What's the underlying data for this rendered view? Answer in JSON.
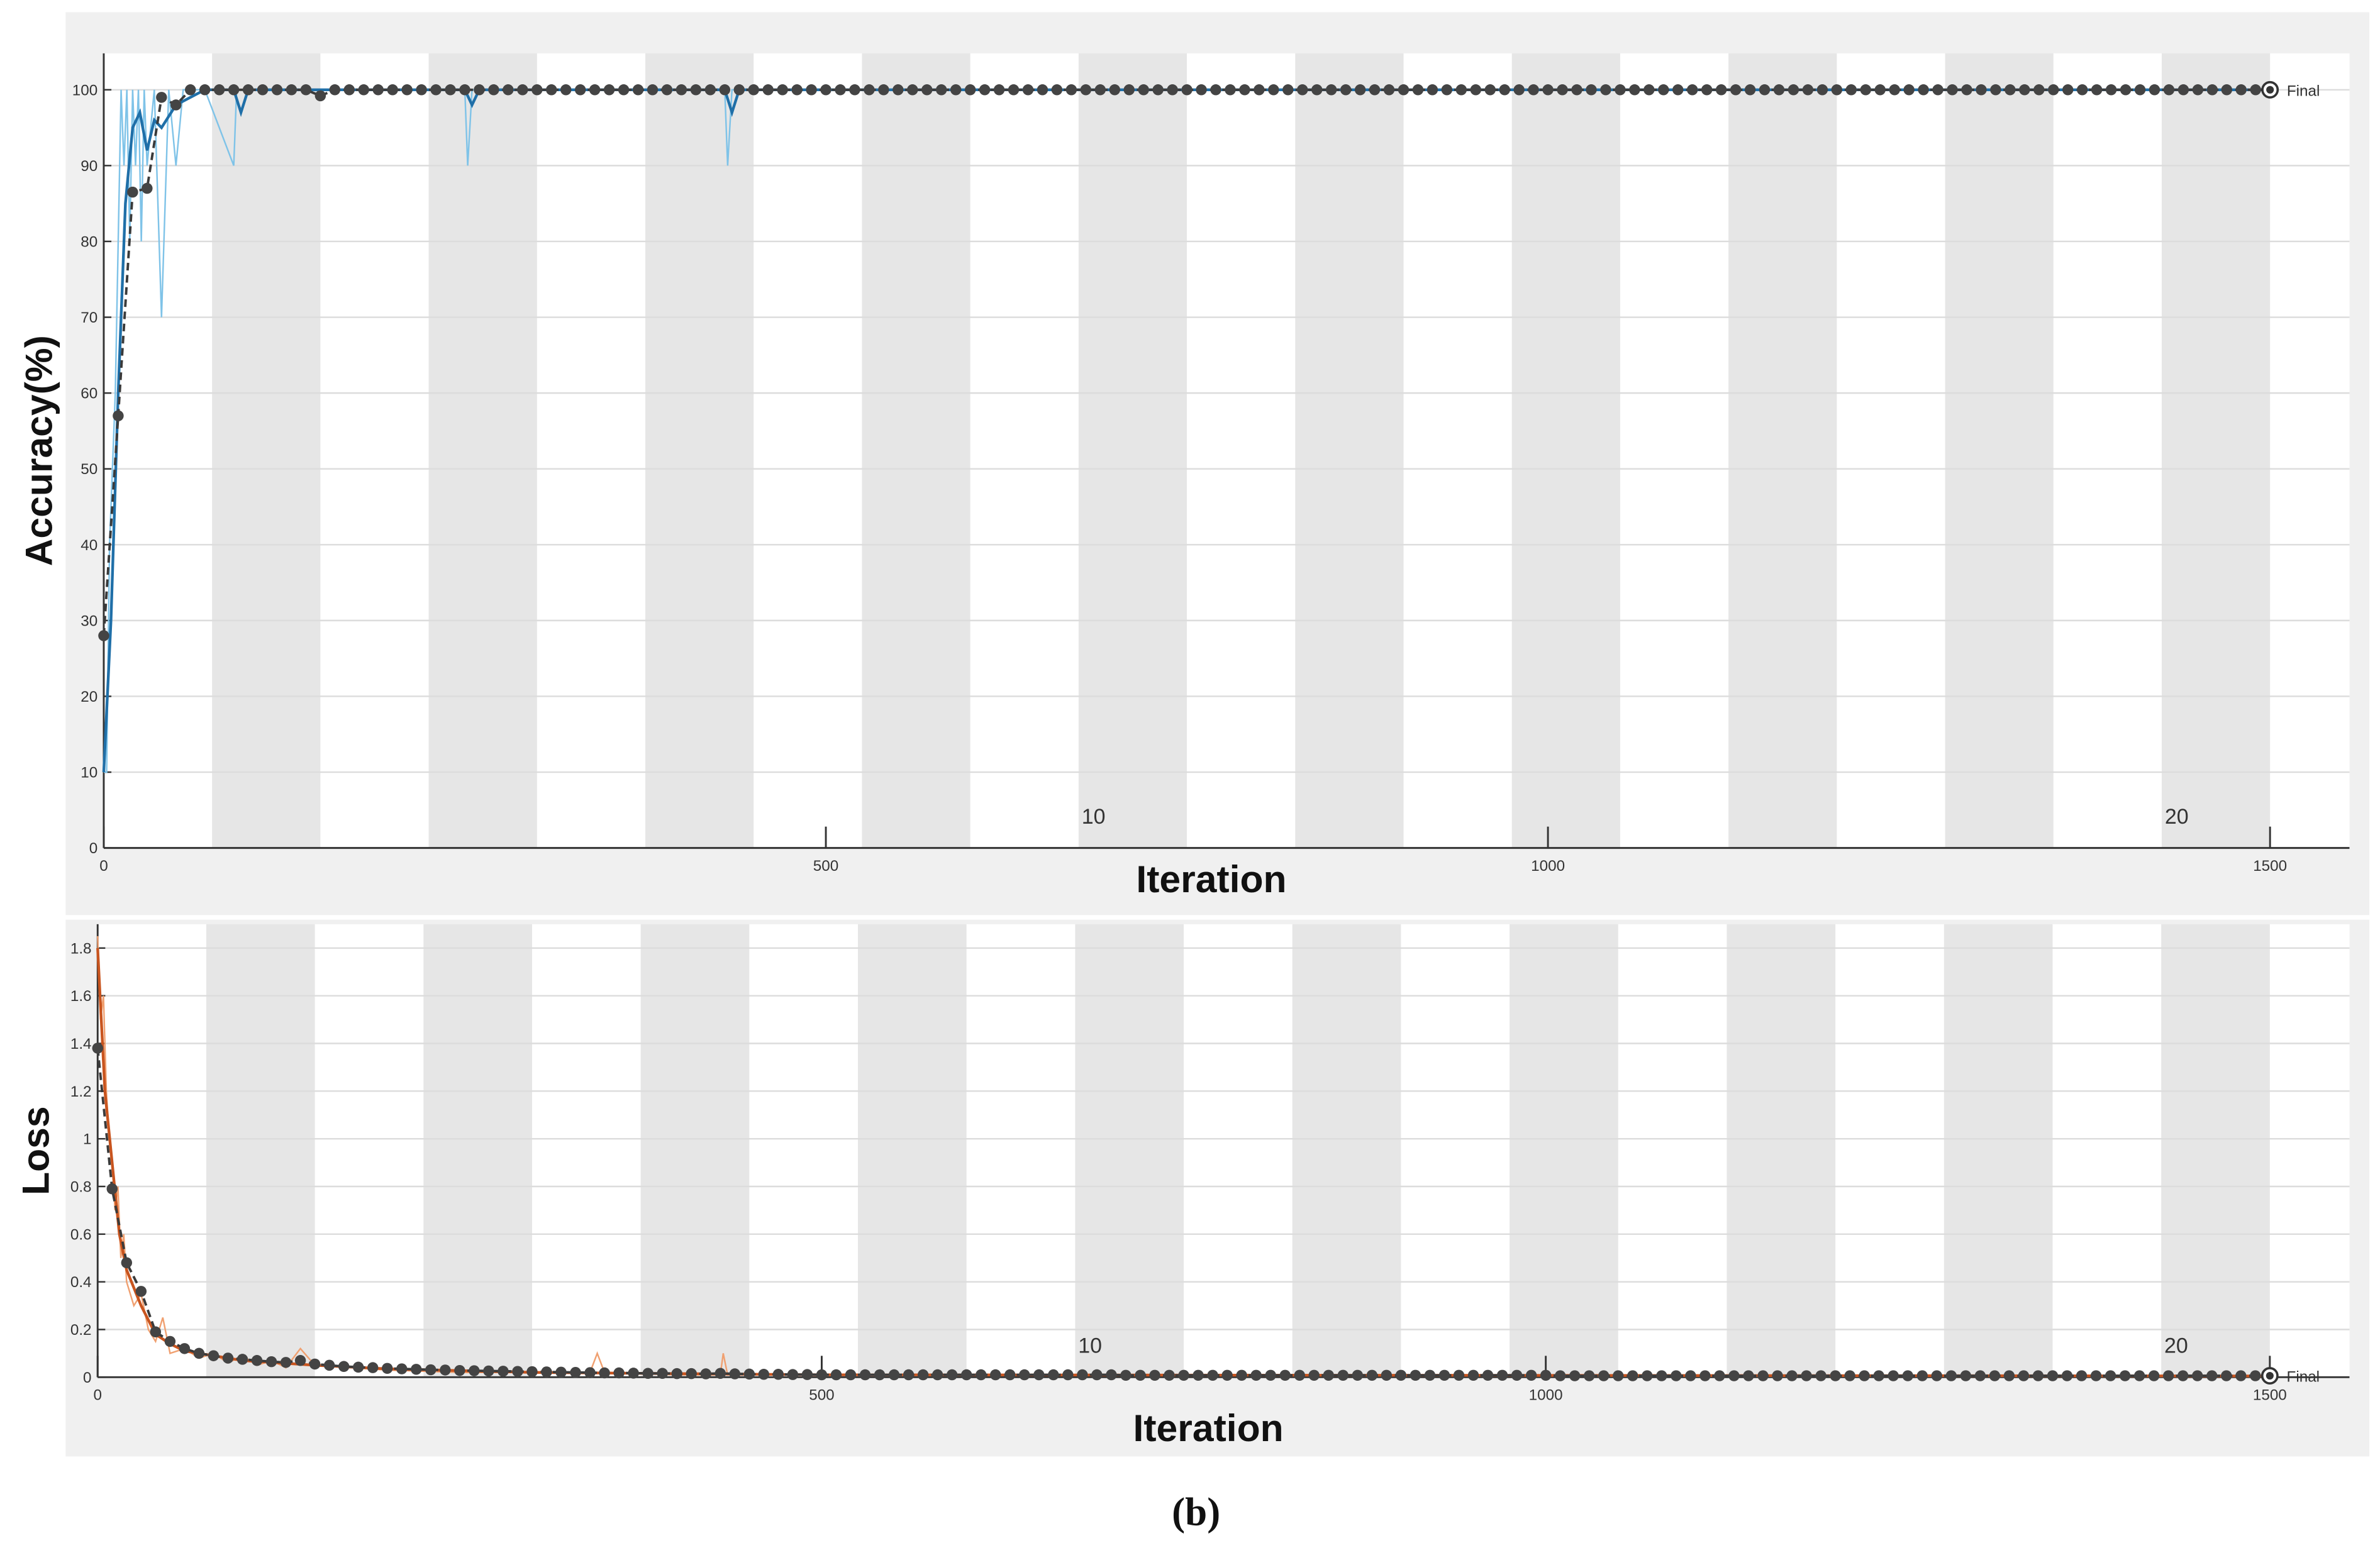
{
  "chart_data": [
    {
      "type": "line",
      "y_label": "Accuracy(%)",
      "x_label": "Iteration",
      "xlim": [
        0,
        1555
      ],
      "ylim": [
        0,
        104.8
      ],
      "xticks": [
        0,
        500,
        1000,
        1500
      ],
      "yticks": [
        0,
        10,
        20,
        30,
        40,
        50,
        60,
        70,
        80,
        90,
        100
      ],
      "grid": true,
      "epoch_count": 20,
      "epoch_labels": [
        10,
        20
      ],
      "final_label": "Final",
      "series": [
        {
          "color": "#7fc3e8",
          "style": "raw",
          "x": [
            0,
            2,
            4,
            6,
            8,
            10,
            12,
            14,
            16,
            18,
            20,
            22,
            24,
            26,
            28,
            30,
            35,
            40,
            45,
            50,
            55,
            60,
            70,
            90,
            92,
            95,
            250,
            252,
            255,
            430,
            432,
            435,
            1500
          ],
          "values": [
            10,
            10,
            40,
            50,
            60,
            80,
            100,
            90,
            100,
            80,
            100,
            90,
            100,
            80,
            100,
            90,
            100,
            70,
            100,
            90,
            100,
            100,
            100,
            90,
            100,
            100,
            100,
            90,
            100,
            100,
            90,
            100,
            100
          ]
        },
        {
          "color": "#1f6fa8",
          "style": "smoothed",
          "x": [
            0,
            5,
            10,
            15,
            20,
            25,
            30,
            35,
            40,
            50,
            60,
            70,
            90,
            95,
            100,
            250,
            255,
            260,
            430,
            435,
            440,
            1500
          ],
          "values": [
            10,
            30,
            60,
            85,
            95,
            97,
            92,
            96,
            95,
            98,
            99,
            100,
            100,
            97,
            100,
            100,
            98,
            100,
            100,
            97,
            100,
            100
          ]
        },
        {
          "color": "#3a3a3a",
          "style": "validation",
          "x": [
            0,
            10,
            20,
            30,
            40,
            50,
            60,
            70,
            80,
            90,
            100,
            110,
            120,
            130,
            140,
            150,
            160,
            170,
            180,
            190,
            200,
            210,
            220,
            230,
            240,
            250,
            260,
            270,
            280,
            290,
            300,
            310,
            320,
            330,
            340,
            350,
            360,
            370,
            380,
            390,
            400,
            410,
            420,
            430,
            440,
            450,
            460,
            470,
            480,
            490,
            500,
            510,
            520,
            530,
            540,
            550,
            560,
            570,
            580,
            590,
            600,
            610,
            620,
            630,
            640,
            650,
            660,
            670,
            680,
            690,
            700,
            710,
            720,
            730,
            740,
            750,
            760,
            770,
            780,
            790,
            800,
            810,
            820,
            830,
            840,
            850,
            860,
            870,
            880,
            890,
            900,
            910,
            920,
            930,
            940,
            950,
            960,
            970,
            980,
            990,
            1000,
            1010,
            1020,
            1030,
            1040,
            1050,
            1060,
            1070,
            1080,
            1090,
            1100,
            1110,
            1120,
            1130,
            1140,
            1150,
            1160,
            1170,
            1180,
            1190,
            1200,
            1210,
            1220,
            1230,
            1240,
            1250,
            1260,
            1270,
            1280,
            1290,
            1300,
            1310,
            1320,
            1330,
            1340,
            1350,
            1360,
            1370,
            1380,
            1390,
            1400,
            1410,
            1420,
            1430,
            1440,
            1450,
            1460,
            1470,
            1480,
            1490,
            1500
          ],
          "values": [
            28,
            57,
            86.5,
            87,
            99,
            98,
            100,
            100,
            100,
            100,
            100,
            100,
            100,
            100,
            100,
            99.2,
            100,
            100,
            100,
            100,
            100,
            100,
            100,
            100,
            100,
            100,
            100,
            100,
            100,
            100,
            100,
            100,
            100,
            100,
            100,
            100,
            100,
            100,
            100,
            100,
            100,
            100,
            100,
            100,
            100,
            100,
            100,
            100,
            100,
            100,
            100,
            100,
            100,
            100,
            100,
            100,
            100,
            100,
            100,
            100,
            100,
            100,
            100,
            100,
            100,
            100,
            100,
            100,
            100,
            100,
            100,
            100,
            100,
            100,
            100,
            100,
            100,
            100,
            100,
            100,
            100,
            100,
            100,
            100,
            100,
            100,
            100,
            100,
            100,
            100,
            100,
            100,
            100,
            100,
            100,
            100,
            100,
            100,
            100,
            100,
            100,
            100,
            100,
            100,
            100,
            100,
            100,
            100,
            100,
            100,
            100,
            100,
            100,
            100,
            100,
            100,
            100,
            100,
            100,
            100,
            100,
            100,
            100,
            100,
            100,
            100,
            100,
            100,
            100,
            100,
            100,
            100,
            100,
            100,
            100,
            100,
            100,
            100,
            100,
            100,
            100,
            100,
            100,
            100,
            100,
            100,
            100,
            100,
            100,
            100,
            100
          ]
        }
      ]
    },
    {
      "type": "line",
      "y_label": "Loss",
      "x_label": "Iteration",
      "xlim": [
        0,
        1555
      ],
      "ylim": [
        0,
        1.9
      ],
      "xticks": [
        0,
        500,
        1000,
        1500
      ],
      "yticks": [
        0,
        0.2,
        0.4,
        0.6,
        0.8,
        1,
        1.2,
        1.4,
        1.6,
        1.8
      ],
      "grid": true,
      "epoch_count": 20,
      "epoch_labels": [
        10,
        20
      ],
      "final_label": "Final",
      "series": [
        {
          "color": "#f0a070",
          "style": "raw",
          "x": [
            0,
            2,
            4,
            6,
            8,
            10,
            12,
            14,
            16,
            18,
            20,
            25,
            30,
            35,
            40,
            45,
            50,
            60,
            70,
            80,
            90,
            100,
            110,
            120,
            130,
            140,
            150,
            200,
            250,
            300,
            340,
            345,
            350,
            400,
            430,
            432,
            435,
            500,
            1500
          ],
          "values": [
            1.85,
            1.5,
            1.6,
            1.2,
            1.0,
            0.9,
            0.7,
            0.8,
            0.5,
            0.6,
            0.4,
            0.3,
            0.35,
            0.2,
            0.15,
            0.25,
            0.1,
            0.12,
            0.08,
            0.1,
            0.06,
            0.09,
            0.05,
            0.07,
            0.04,
            0.12,
            0.05,
            0.03,
            0.02,
            0.02,
            0.02,
            0.1,
            0.02,
            0.01,
            0.01,
            0.1,
            0.01,
            0.01,
            0.005
          ]
        },
        {
          "color": "#c8541e",
          "style": "smoothed",
          "x": [
            0,
            5,
            10,
            15,
            20,
            30,
            40,
            50,
            60,
            80,
            100,
            150,
            200,
            300,
            500,
            1500
          ],
          "values": [
            1.8,
            1.2,
            0.9,
            0.6,
            0.45,
            0.3,
            0.18,
            0.14,
            0.11,
            0.09,
            0.07,
            0.05,
            0.035,
            0.02,
            0.01,
            0.005
          ]
        },
        {
          "color": "#3a3a3a",
          "style": "validation",
          "x": [
            0,
            10,
            20,
            30,
            40,
            50,
            60,
            70,
            80,
            90,
            100,
            110,
            120,
            130,
            140,
            150,
            160,
            170,
            180,
            190,
            200,
            210,
            220,
            230,
            240,
            250,
            260,
            270,
            280,
            290,
            300,
            310,
            320,
            330,
            340,
            350,
            360,
            370,
            380,
            390,
            400,
            410,
            420,
            430,
            440,
            450,
            460,
            470,
            480,
            490,
            500,
            510,
            520,
            530,
            540,
            550,
            560,
            570,
            580,
            590,
            600,
            610,
            620,
            630,
            640,
            650,
            660,
            670,
            680,
            690,
            700,
            710,
            720,
            730,
            740,
            750,
            760,
            770,
            780,
            790,
            800,
            810,
            820,
            830,
            840,
            850,
            860,
            870,
            880,
            890,
            900,
            910,
            920,
            930,
            940,
            950,
            960,
            970,
            980,
            990,
            1000,
            1010,
            1020,
            1030,
            1040,
            1050,
            1060,
            1070,
            1080,
            1090,
            1100,
            1110,
            1120,
            1130,
            1140,
            1150,
            1160,
            1170,
            1180,
            1190,
            1200,
            1210,
            1220,
            1230,
            1240,
            1250,
            1260,
            1270,
            1280,
            1290,
            1300,
            1310,
            1320,
            1330,
            1340,
            1350,
            1360,
            1370,
            1380,
            1390,
            1400,
            1410,
            1420,
            1430,
            1440,
            1450,
            1460,
            1470,
            1480,
            1490,
            1500
          ],
          "values": [
            1.38,
            0.79,
            0.48,
            0.36,
            0.19,
            0.15,
            0.12,
            0.1,
            0.09,
            0.08,
            0.075,
            0.07,
            0.065,
            0.062,
            0.07,
            0.055,
            0.05,
            0.045,
            0.042,
            0.04,
            0.037,
            0.035,
            0.033,
            0.031,
            0.03,
            0.028,
            0.027,
            0.026,
            0.025,
            0.024,
            0.023,
            0.022,
            0.021,
            0.02,
            0.019,
            0.018,
            0.018,
            0.017,
            0.016,
            0.016,
            0.015,
            0.015,
            0.014,
            0.016,
            0.014,
            0.013,
            0.012,
            0.012,
            0.011,
            0.011,
            0.01,
            0.01,
            0.01,
            0.01,
            0.01,
            0.01,
            0.01,
            0.01,
            0.01,
            0.01,
            0.01,
            0.01,
            0.01,
            0.01,
            0.01,
            0.01,
            0.01,
            0.01,
            0.01,
            0.01,
            0.01,
            0.008,
            0.008,
            0.008,
            0.008,
            0.008,
            0.008,
            0.008,
            0.008,
            0.008,
            0.008,
            0.008,
            0.008,
            0.008,
            0.008,
            0.008,
            0.008,
            0.008,
            0.008,
            0.008,
            0.008,
            0.008,
            0.008,
            0.008,
            0.008,
            0.008,
            0.008,
            0.008,
            0.008,
            0.008,
            0.008,
            0.006,
            0.006,
            0.006,
            0.006,
            0.006,
            0.006,
            0.006,
            0.006,
            0.006,
            0.006,
            0.006,
            0.006,
            0.006,
            0.006,
            0.006,
            0.006,
            0.006,
            0.006,
            0.006,
            0.006,
            0.006,
            0.006,
            0.006,
            0.006,
            0.006,
            0.006,
            0.006,
            0.006,
            0.006,
            0.006,
            0.006,
            0.006,
            0.006,
            0.006,
            0.006,
            0.006,
            0.006,
            0.006,
            0.006,
            0.006,
            0.006,
            0.006,
            0.006,
            0.006,
            0.006,
            0.006,
            0.006,
            0.006,
            0.006,
            0.006
          ]
        }
      ]
    }
  ],
  "caption": "(b)"
}
